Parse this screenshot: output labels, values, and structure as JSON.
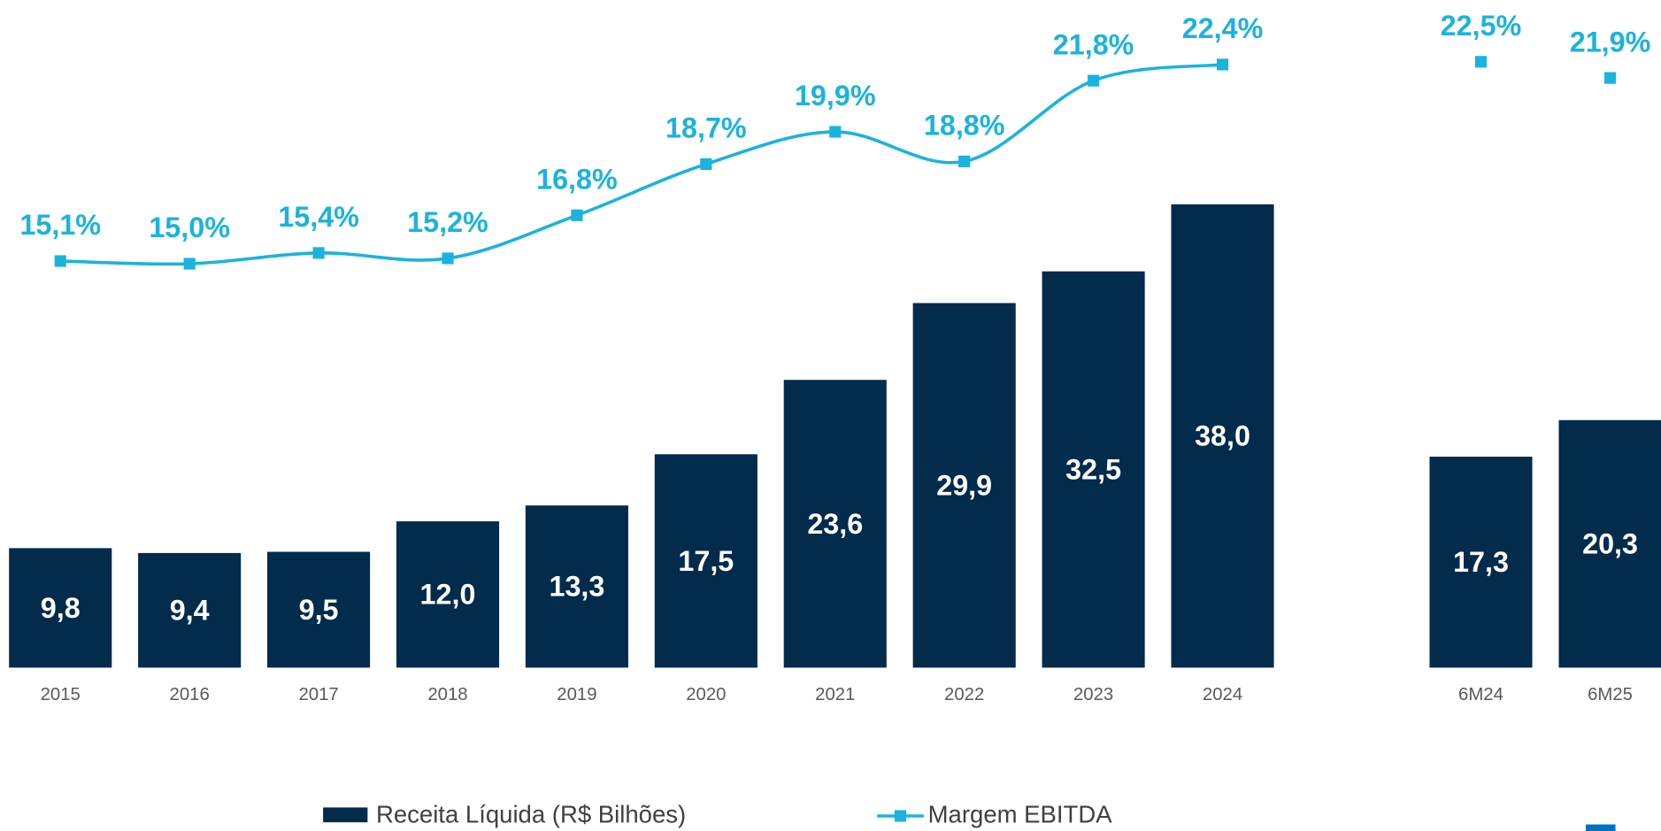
{
  "chart_data": [
    {
      "type": "bar",
      "categories": [
        "2015",
        "2016",
        "2017",
        "2018",
        "2019",
        "2020",
        "2021",
        "2022",
        "2023",
        "2024"
      ],
      "series": [
        {
          "name": "Receita Líquida (R$ Bilhões)",
          "type": "bar",
          "color": "#022b4c",
          "values": [
            9.8,
            9.4,
            9.5,
            12.0,
            13.3,
            17.5,
            23.6,
            29.9,
            32.5,
            38.0
          ],
          "value_labels": [
            "9,8",
            "9,4",
            "9,5",
            "12,0",
            "13,3",
            "17,5",
            "23,6",
            "29,9",
            "32,5",
            "38,0"
          ]
        },
        {
          "name": "Margem EBITDA",
          "type": "line",
          "axis": "y2",
          "color": "#1bb3dd",
          "values": [
            15.1,
            15.0,
            15.4,
            15.2,
            16.8,
            18.7,
            19.9,
            18.8,
            21.8,
            22.4
          ],
          "value_labels": [
            "15,1%",
            "15,0%",
            "15,4%",
            "15,2%",
            "16,8%",
            "18,7%",
            "19,9%",
            "18,8%",
            "21,8%",
            "22,4%"
          ]
        }
      ],
      "ylim": [
        0,
        53
      ],
      "y2lim": [
        0,
        24
      ],
      "legend": "bottom"
    },
    {
      "type": "bar",
      "categories": [
        "6M24",
        "6M25"
      ],
      "series": [
        {
          "type": "bar",
          "color": "#022b4c",
          "values": [
            17.3,
            20.3
          ],
          "value_labels": [
            "17,3",
            "20,3"
          ]
        },
        {
          "type": "scatter",
          "axis": "y2",
          "color": "#1bb3dd",
          "values": [
            22.5,
            21.9
          ],
          "value_labels": [
            "22,5%",
            "21,9%"
          ]
        }
      ],
      "ylim": [
        0,
        53
      ],
      "y2lim": [
        0,
        24
      ]
    }
  ]
}
